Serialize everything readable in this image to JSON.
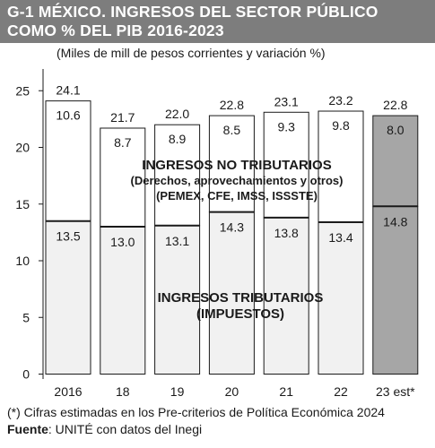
{
  "header": {
    "title_line1": "G-1 MÉXICO. INGRESOS DEL SECTOR PÚBLICO",
    "title_line2": "COMO % DEL PIB 2016-2023"
  },
  "subtitle": "(Miles de mill de pesos corrientes y variación %)",
  "colors": {
    "title_band": "#7d7d7d",
    "bar_fill": "#ffffff",
    "tax_fill": "#f1f1f1",
    "estimate_fill": "#a6a6a6",
    "outline": "#1a1a1a"
  },
  "chart_data": {
    "type": "bar",
    "stacked": true,
    "categories": [
      "2016",
      "18",
      "19",
      "20",
      "21",
      "22",
      "23 est*"
    ],
    "estimated_category": "23 est*",
    "series": [
      {
        "name": "INGRESOS TRIBUTARIOS (IMPUESTOS)",
        "values": [
          13.5,
          13.0,
          13.1,
          14.3,
          13.8,
          13.4,
          14.8
        ]
      },
      {
        "name": "INGRESOS NO TRIBUTARIOS (Derechos, aprovechamientos y otros) (PEMEX, CFE, IMSS, ISSSTE)",
        "values": [
          10.6,
          8.7,
          8.9,
          8.5,
          9.3,
          9.8,
          8.0
        ]
      }
    ],
    "totals": [
      24.1,
      21.7,
      22.0,
      22.8,
      23.1,
      23.2,
      22.8
    ],
    "value_labels": {
      "tax": [
        "13.5",
        "13.0",
        "13.1",
        "14.3",
        "13.8",
        "13.4",
        "14.8"
      ],
      "nontax": [
        "10.6",
        "8.7",
        "8.9",
        "8.5",
        "9.3",
        "9.8",
        "8.0"
      ],
      "totals": [
        "24.1",
        "21.7",
        "22.0",
        "22.8",
        "23.1",
        "23.2",
        "22.8"
      ]
    },
    "ylim": [
      0,
      25
    ],
    "yticks": [
      0,
      5,
      10,
      15,
      20,
      25
    ],
    "ytick_labels": [
      "0",
      "5",
      "10",
      "15",
      "20",
      "25"
    ],
    "annotations": {
      "nontax": [
        "INGRESOS NO TRIBUTARIOS",
        "(Derechos, aprovechamientos y otros)",
        "(PEMEX, CFE, IMSS, ISSSTE)"
      ],
      "tax": [
        "INGRESOS TRIBUTARIOS",
        "(IMPUESTOS)"
      ]
    },
    "grid": false,
    "legend": "none"
  },
  "footer": {
    "note": "(*) Cifras estimadas en los Pre-criterios de Política Económica 2024",
    "source_label": "Fuente",
    "source_text": ": UNITÉ con datos del Inegi"
  }
}
